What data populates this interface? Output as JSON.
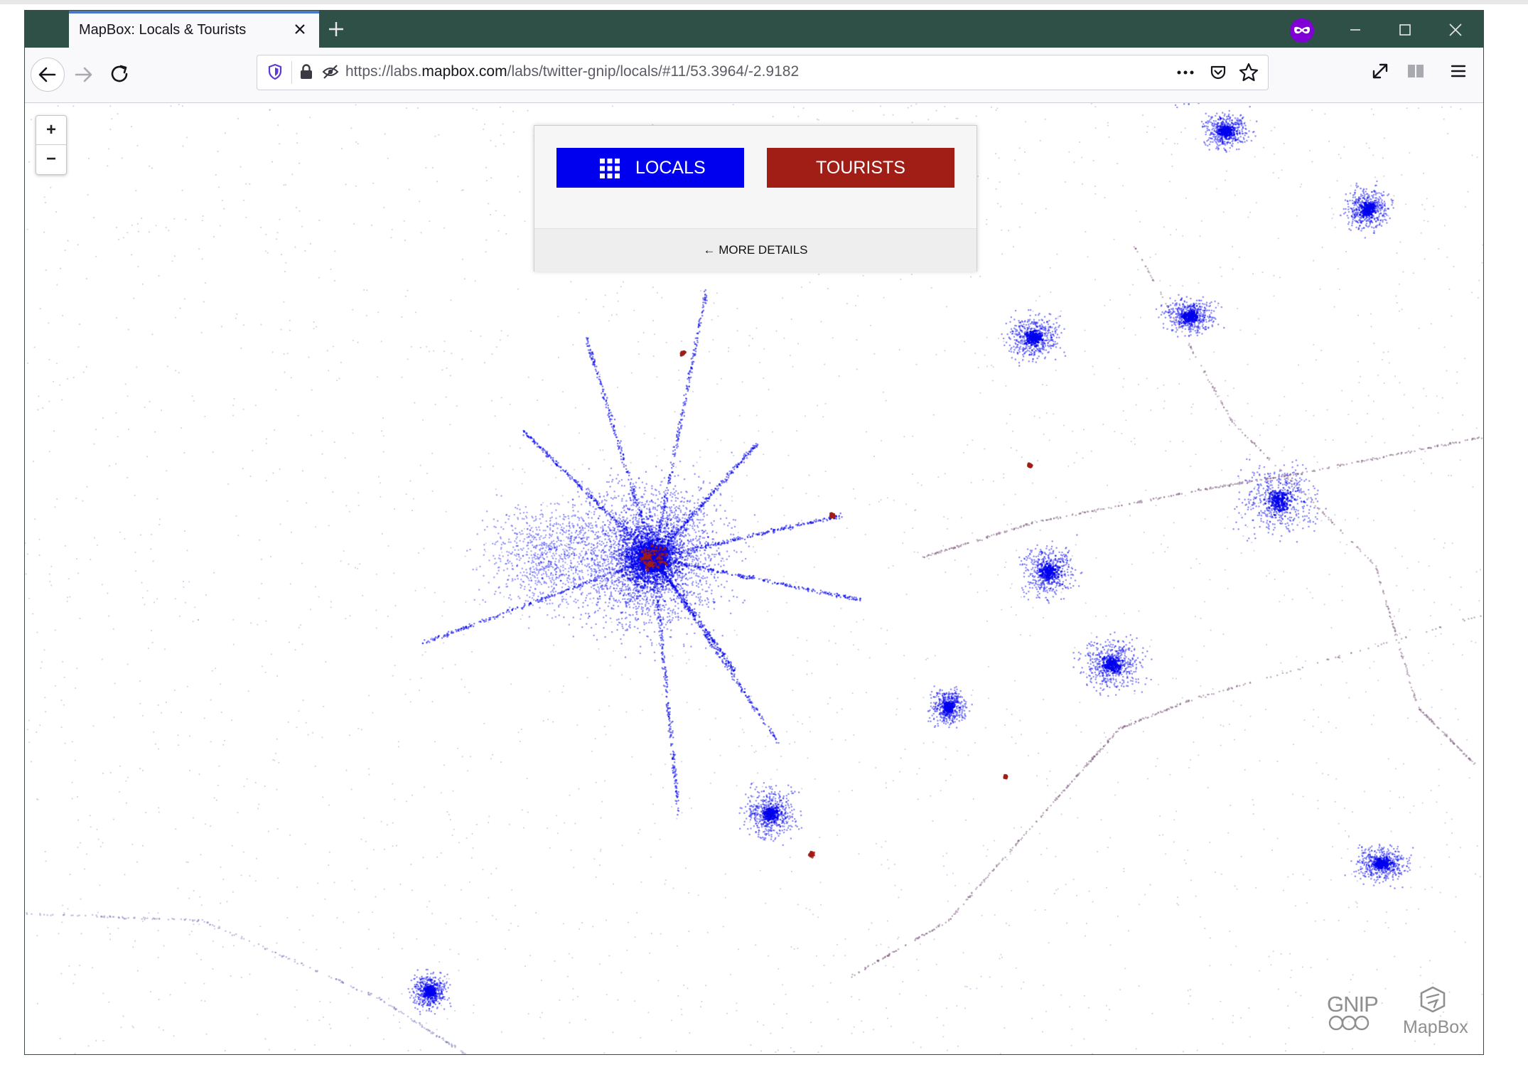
{
  "browser": {
    "tab_title": "MapBox: Locals & Tourists",
    "url_prefix": "https://labs.",
    "url_domain": "mapbox.com",
    "url_path": "/labs/twitter-gnip/locals/#11/53.3964/-2.9182"
  },
  "map": {
    "zoom_in_label": "+",
    "zoom_out_label": "−",
    "colors": {
      "locals": "#0000ee",
      "tourists": "#a01e16"
    }
  },
  "panel": {
    "locals_label": "LOCALS",
    "tourists_label": "TOURISTS",
    "details_label": "← MORE DETAILS"
  },
  "logos": {
    "gnip": "GNIP",
    "mapbox": "MapBox"
  },
  "icons": [
    "close-icon",
    "plus-icon",
    "private-browsing-icon",
    "minimize-icon",
    "maximize-icon",
    "back-arrow-icon",
    "forward-arrow-icon",
    "reload-icon",
    "shield-icon",
    "lock-icon",
    "tracking-icon",
    "more-icon",
    "pocket-icon",
    "star-icon",
    "fullscreen-icon",
    "reader-icon",
    "hamburger-icon",
    "grid-icon"
  ]
}
